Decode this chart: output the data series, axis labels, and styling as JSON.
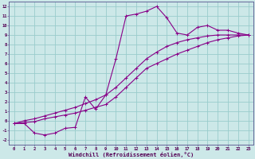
{
  "xlabel": "Windchill (Refroidissement éolien,°C)",
  "background_color": "#cce8e8",
  "grid_color": "#99cccc",
  "line_color": "#880088",
  "xlim": [
    -0.5,
    23.5
  ],
  "ylim": [
    -2.5,
    12.5
  ],
  "xticks": [
    0,
    1,
    2,
    3,
    4,
    5,
    6,
    7,
    8,
    9,
    10,
    11,
    12,
    13,
    14,
    15,
    16,
    17,
    18,
    19,
    20,
    21,
    22,
    23
  ],
  "yticks": [
    -2,
    -1,
    0,
    1,
    2,
    3,
    4,
    5,
    6,
    7,
    8,
    9,
    10,
    11,
    12
  ],
  "series": [
    [
      0,
      -0.3
    ],
    [
      1,
      -0.3
    ],
    [
      2,
      -1.3
    ],
    [
      3,
      -1.5
    ],
    [
      4,
      -1.3
    ],
    [
      5,
      -0.8
    ],
    [
      6,
      -0.7
    ],
    [
      7,
      2.5
    ],
    [
      8,
      1.2
    ],
    [
      9,
      2.7
    ],
    [
      10,
      6.5
    ],
    [
      11,
      11.0
    ],
    [
      12,
      11.2
    ],
    [
      13,
      11.5
    ],
    [
      14,
      12.0
    ],
    [
      15,
      10.8
    ],
    [
      16,
      9.2
    ],
    [
      17,
      9.0
    ],
    [
      18,
      9.8
    ],
    [
      19,
      10.0
    ],
    [
      20,
      9.5
    ],
    [
      21,
      9.5
    ],
    [
      22,
      9.2
    ],
    [
      23,
      9.0
    ]
  ],
  "line2": [
    [
      0,
      -0.3
    ],
    [
      1,
      -0.2
    ],
    [
      2,
      -0.1
    ],
    [
      3,
      0.2
    ],
    [
      4,
      0.4
    ],
    [
      5,
      0.6
    ],
    [
      6,
      0.8
    ],
    [
      7,
      1.1
    ],
    [
      8,
      1.4
    ],
    [
      9,
      1.7
    ],
    [
      10,
      2.5
    ],
    [
      11,
      3.5
    ],
    [
      12,
      4.5
    ],
    [
      13,
      5.5
    ],
    [
      14,
      6.0
    ],
    [
      15,
      6.5
    ],
    [
      16,
      7.0
    ],
    [
      17,
      7.4
    ],
    [
      18,
      7.8
    ],
    [
      19,
      8.2
    ],
    [
      20,
      8.5
    ],
    [
      21,
      8.7
    ],
    [
      22,
      8.9
    ],
    [
      23,
      9.0
    ]
  ],
  "line3": [
    [
      0,
      -0.3
    ],
    [
      1,
      0.0
    ],
    [
      2,
      0.2
    ],
    [
      3,
      0.5
    ],
    [
      4,
      0.8
    ],
    [
      5,
      1.1
    ],
    [
      6,
      1.4
    ],
    [
      7,
      1.8
    ],
    [
      8,
      2.2
    ],
    [
      9,
      2.7
    ],
    [
      10,
      3.5
    ],
    [
      11,
      4.5
    ],
    [
      12,
      5.5
    ],
    [
      13,
      6.5
    ],
    [
      14,
      7.2
    ],
    [
      15,
      7.8
    ],
    [
      16,
      8.2
    ],
    [
      17,
      8.5
    ],
    [
      18,
      8.7
    ],
    [
      19,
      8.9
    ],
    [
      20,
      9.0
    ],
    [
      21,
      9.0
    ],
    [
      22,
      9.0
    ],
    [
      23,
      9.0
    ]
  ]
}
